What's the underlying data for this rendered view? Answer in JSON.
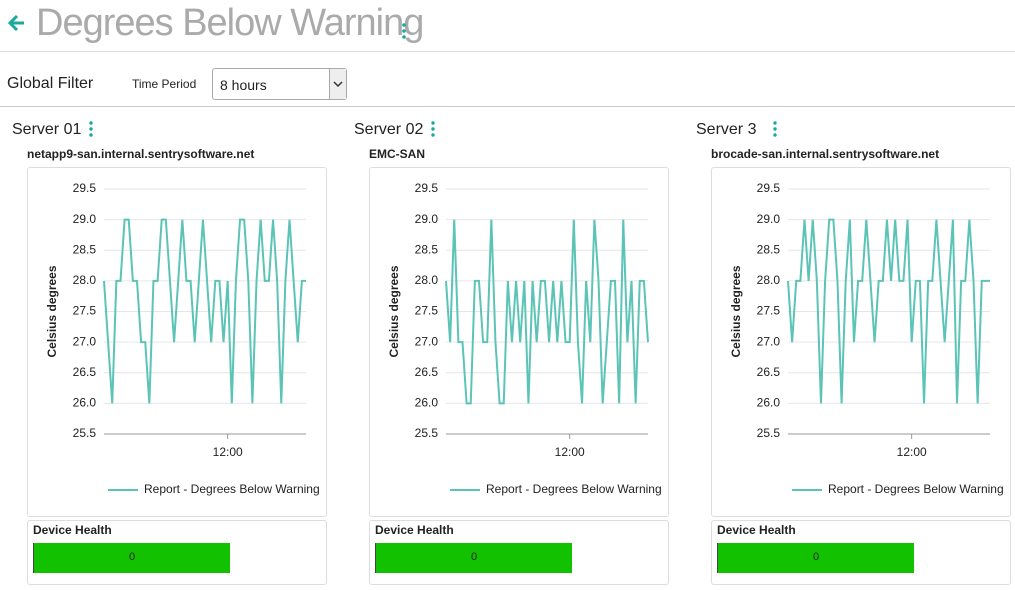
{
  "header": {
    "title": "Degrees Below Warning"
  },
  "filter": {
    "label": "Global Filter",
    "time_period": {
      "label": "Time Period",
      "value": "8 hours"
    }
  },
  "panels": [
    {
      "title": "Server 01",
      "device": "netapp9-san.internal.sentrysoftware.net",
      "health": {
        "label": "Device Health",
        "value": 0
      }
    },
    {
      "title": "Server 02",
      "device": "EMC-SAN",
      "health": {
        "label": "Device Health",
        "value": 0
      }
    },
    {
      "title": "Server 3",
      "device": "brocade-san.internal.sentrysoftware.net",
      "health": {
        "label": "Device Health",
        "value": 0
      }
    }
  ],
  "chart_data": [
    {
      "type": "line",
      "y_label": "Celsius degrees",
      "categories": [
        null,
        null,
        null,
        null,
        null,
        null,
        null,
        null,
        null,
        null,
        null,
        null,
        null,
        null,
        null,
        null,
        null,
        null,
        null,
        null,
        null,
        null,
        null,
        null,
        null,
        null,
        null,
        null,
        null,
        null,
        "12:00",
        null,
        null,
        null,
        null,
        null,
        null,
        null,
        null,
        null,
        null,
        null,
        null,
        null,
        null,
        null,
        null,
        null,
        null,
        null
      ],
      "series": [
        {
          "name": "Report - Degrees Below Warning",
          "color": "#5bc4b6",
          "values": [
            28,
            27,
            26,
            28,
            28,
            29,
            29,
            28,
            28,
            27,
            27,
            26,
            28,
            28,
            29,
            29,
            28,
            27,
            28,
            29,
            28,
            28,
            27,
            28,
            29,
            28,
            27,
            28,
            28,
            27,
            28,
            26,
            28,
            29,
            29,
            28,
            26,
            28,
            29,
            28,
            28,
            29,
            28,
            26,
            28,
            29,
            28,
            27,
            28,
            28
          ]
        }
      ],
      "ylim": [
        25.5,
        29.5
      ],
      "yticks": [
        25.5,
        {
          "value": 26,
          "label": "26.0"
        },
        26.5,
        {
          "value": 27,
          "label": "27.0"
        },
        27.5,
        {
          "value": 28,
          "label": "28.0"
        },
        28.5,
        {
          "value": 29,
          "label": "29.0"
        },
        29.5
      ],
      "grid": true
    },
    {
      "type": "line",
      "y_label": "Celsius degrees",
      "categories": [
        null,
        null,
        null,
        null,
        null,
        null,
        null,
        null,
        null,
        null,
        null,
        null,
        null,
        null,
        null,
        null,
        null,
        null,
        null,
        null,
        null,
        null,
        null,
        null,
        null,
        null,
        null,
        null,
        null,
        null,
        "12:00",
        null,
        null,
        null,
        null,
        null,
        null,
        null,
        null,
        null,
        null,
        null,
        null,
        null,
        null,
        null,
        null,
        null,
        null,
        null
      ],
      "series": [
        {
          "name": "Report - Degrees Below Warning",
          "color": "#5bc4b6",
          "values": [
            28,
            27,
            29,
            27,
            27,
            26,
            26,
            28,
            28,
            27,
            27,
            29,
            27,
            26,
            26,
            28,
            27,
            28,
            27,
            28,
            26,
            28,
            27,
            28,
            28,
            27,
            28,
            27,
            28,
            27,
            27,
            29,
            27,
            26,
            28,
            27,
            29,
            28,
            26,
            27,
            28,
            28,
            26,
            29,
            27,
            28,
            26,
            28,
            28,
            27
          ]
        }
      ],
      "ylim": [
        25.5,
        29.5
      ],
      "yticks": [
        25.5,
        {
          "value": 26,
          "label": "26.0"
        },
        26.5,
        {
          "value": 27,
          "label": "27.0"
        },
        27.5,
        {
          "value": 28,
          "label": "28.0"
        },
        28.5,
        {
          "value": 29,
          "label": "29.0"
        },
        29.5
      ],
      "grid": true
    },
    {
      "type": "line",
      "y_label": "Celsius degrees",
      "categories": [
        null,
        null,
        null,
        null,
        null,
        null,
        null,
        null,
        null,
        null,
        null,
        null,
        null,
        null,
        null,
        null,
        null,
        null,
        null,
        null,
        null,
        null,
        null,
        null,
        null,
        null,
        null,
        null,
        null,
        null,
        "12:00",
        null,
        null,
        null,
        null,
        null,
        null,
        null,
        null,
        null,
        null,
        null,
        null,
        null,
        null,
        null,
        null,
        null,
        null,
        null
      ],
      "series": [
        {
          "name": "Report - Degrees Below Warning",
          "color": "#5bc4b6",
          "values": [
            28,
            27,
            28,
            28,
            29,
            28,
            29,
            28,
            26,
            28,
            29,
            29,
            28,
            26,
            28,
            29,
            27,
            28,
            28,
            29,
            28,
            27,
            28,
            28,
            29,
            28,
            29,
            28,
            28,
            29,
            27,
            28,
            28,
            26,
            28,
            28,
            29,
            28,
            27,
            28,
            29,
            26,
            28,
            28,
            29,
            28,
            26,
            28,
            28,
            28
          ]
        }
      ],
      "ylim": [
        25.5,
        29.5
      ],
      "yticks": [
        25.5,
        {
          "value": 26,
          "label": "26.0"
        },
        26.5,
        {
          "value": 27,
          "label": "27.0"
        },
        27.5,
        {
          "value": 28,
          "label": "28.0"
        },
        28.5,
        {
          "value": 29,
          "label": "29.0"
        },
        29.5
      ],
      "grid": true
    }
  ]
}
